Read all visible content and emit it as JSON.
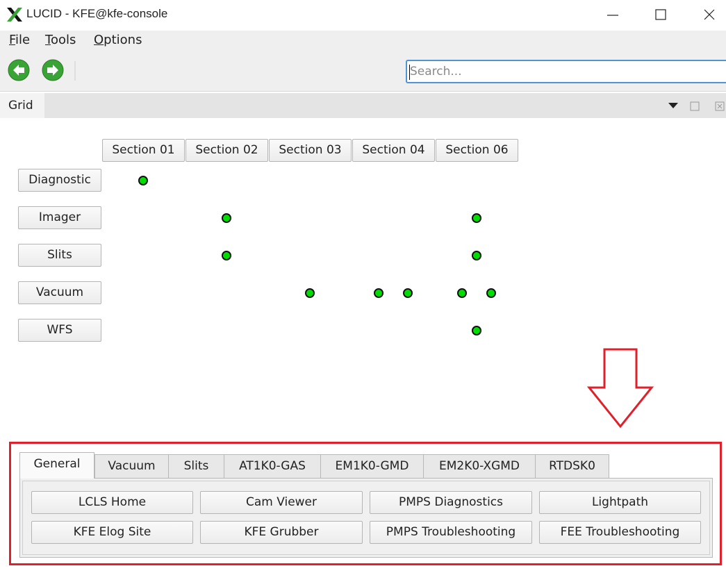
{
  "window": {
    "title": "LUCID - KFE@kfe-console"
  },
  "menu": [
    "File",
    "Tools",
    "Options"
  ],
  "toolbar": {
    "search_placeholder": "Search..."
  },
  "dock": {
    "title": "Grid"
  },
  "grid": {
    "sections": [
      "Section 01",
      "Section 02",
      "Section 03",
      "Section 04",
      "Section 06"
    ],
    "rows": [
      "Diagnostic",
      "Imager",
      "Slits",
      "Vacuum",
      "WFS"
    ]
  },
  "tabs": [
    "General",
    "Vacuum",
    "Slits",
    "AT1K0-GAS",
    "EM1K0-GMD",
    "EM2K0-XGMD",
    "RTDSK0"
  ],
  "buttons": [
    "LCLS Home",
    "Cam Viewer",
    "PMPS Diagnostics",
    "Lightpath",
    "KFE Elog Site",
    "KFE Grubber",
    "PMPS Troubleshooting",
    "FEE Troubleshooting"
  ]
}
